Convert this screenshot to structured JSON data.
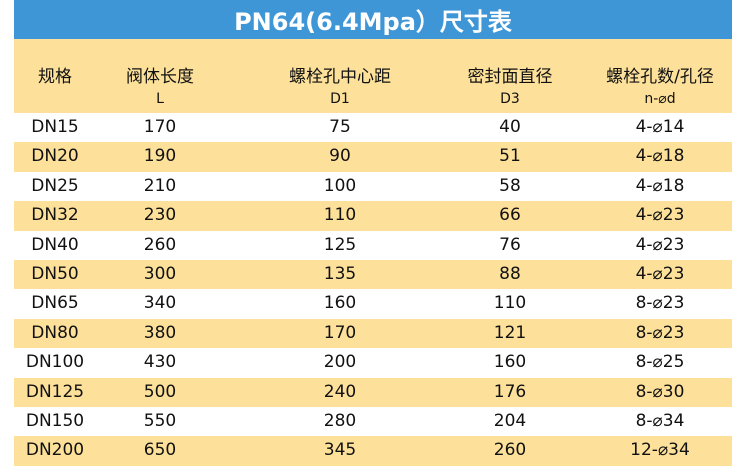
{
  "title": "PN64(6.4Mpa）尺寸表",
  "headers": [
    {
      "name": "规格",
      "sub": ""
    },
    {
      "name": "阀体长度",
      "sub": "L"
    },
    {
      "name": "螺栓孔中心距",
      "sub": "D1"
    },
    {
      "name": "密封面直径",
      "sub": "D3"
    },
    {
      "name": "螺栓孔数/孔径",
      "sub": "n-⌀d"
    }
  ],
  "rows": [
    [
      "DN15",
      "170",
      "75",
      "40",
      "4-⌀14"
    ],
    [
      "DN20",
      "190",
      "90",
      "51",
      "4-⌀18"
    ],
    [
      "DN25",
      "210",
      "100",
      "58",
      "4-⌀18"
    ],
    [
      "DN32",
      "230",
      "110",
      "66",
      "4-⌀23"
    ],
    [
      "DN40",
      "260",
      "125",
      "76",
      "4-⌀23"
    ],
    [
      "DN50",
      "300",
      "135",
      "88",
      "4-⌀23"
    ],
    [
      "DN65",
      "340",
      "160",
      "110",
      "8-⌀23"
    ],
    [
      "DN80",
      "380",
      "170",
      "121",
      "8-⌀23"
    ],
    [
      "DN100",
      "430",
      "200",
      "160",
      "8-⌀25"
    ],
    [
      "DN125",
      "500",
      "240",
      "176",
      "8-⌀30"
    ],
    [
      "DN150",
      "550",
      "280",
      "204",
      "8-⌀34"
    ],
    [
      "DN200",
      "650",
      "345",
      "260",
      "12-⌀34"
    ]
  ],
  "colors": {
    "title_bg": "#3f96d6",
    "stripe": "#fde19a"
  }
}
